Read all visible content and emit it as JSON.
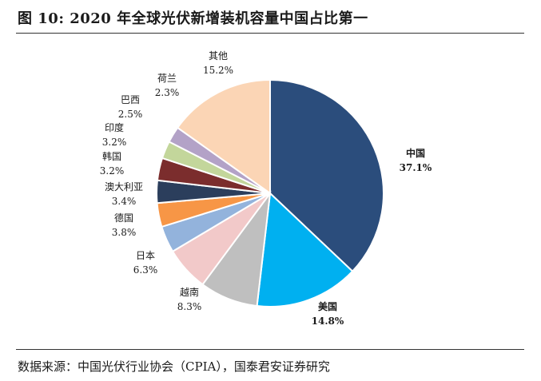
{
  "figure": {
    "title": "图 10:  2020  年全球光伏新增装机容量中国占比第一",
    "source": "数据来源：中国光伏行业协会（CPIA），国泰君安证券研究"
  },
  "chart_data": {
    "type": "pie",
    "title": "",
    "unit": "%",
    "start_angle_deg": 0,
    "direction": "clockwise",
    "slices": [
      {
        "name": "中国",
        "value": 37.1,
        "value_label": "37.1%",
        "color": "#2b4d7c"
      },
      {
        "name": "美国",
        "value": 14.8,
        "value_label": "14.8%",
        "color": "#00b0f0"
      },
      {
        "name": "越南",
        "value": 8.3,
        "value_label": "8.3%",
        "color": "#bfbfbf"
      },
      {
        "name": "日本",
        "value": 6.3,
        "value_label": "6.3%",
        "color": "#f2c9c9"
      },
      {
        "name": "德国",
        "value": 3.8,
        "value_label": "3.8%",
        "color": "#93b3dc"
      },
      {
        "name": "澳大利亚",
        "value": 3.4,
        "value_label": "3.4%",
        "color": "#f79646"
      },
      {
        "name": "韩国",
        "value": 3.2,
        "value_label": "3.2%",
        "color": "#2b3e5c"
      },
      {
        "name": "印度",
        "value": 3.2,
        "value_label": "3.2%",
        "color": "#7b2d2d"
      },
      {
        "name": "巴西",
        "value": 2.5,
        "value_label": "2.5%",
        "color": "#c3d69b"
      },
      {
        "name": "荷兰",
        "value": 2.3,
        "value_label": "2.3%",
        "color": "#b3a2c7"
      },
      {
        "name": "其他",
        "value": 15.2,
        "value_label": "15.2%",
        "color": "#fbd5b5"
      }
    ]
  }
}
